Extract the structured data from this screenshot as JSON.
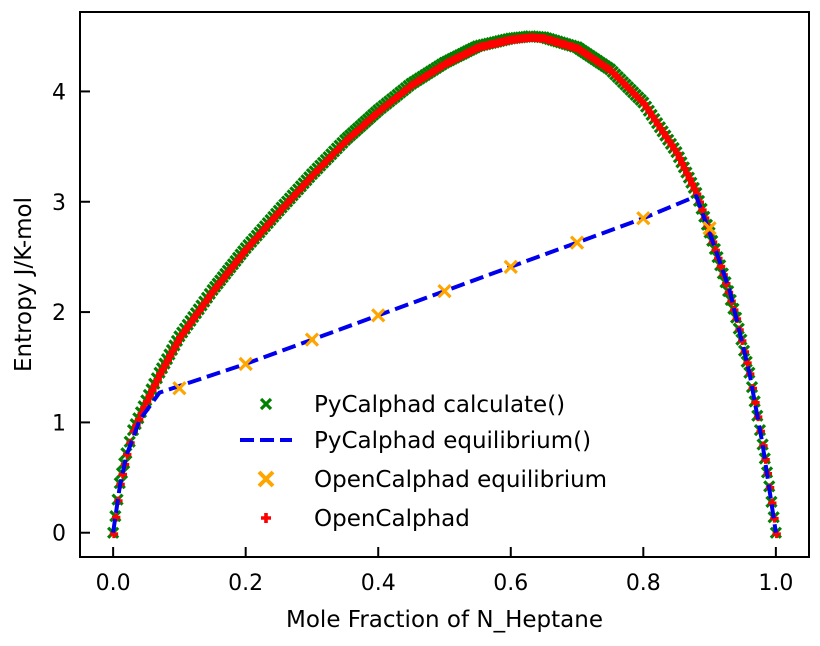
{
  "chart_data": {
    "type": "scatter",
    "title": "",
    "xlabel": "Mole Fraction of N_Heptane",
    "ylabel": "Entropy J/K-mol",
    "xlim": [
      -0.05,
      1.05
    ],
    "ylim": [
      -0.22,
      4.72
    ],
    "grid": false,
    "legend_position": "lower-center",
    "x_ticks": [
      0.0,
      0.2,
      0.4,
      0.6,
      0.8,
      1.0
    ],
    "x_tick_labels": [
      "0.0",
      "0.2",
      "0.4",
      "0.6",
      "0.8",
      "1.0"
    ],
    "y_ticks": [
      0,
      1,
      2,
      3,
      4
    ],
    "y_tick_labels": [
      "0",
      "1",
      "2",
      "3",
      "4"
    ],
    "series": [
      {
        "name": "PyCalphad calculate()",
        "kind": "curve-markers",
        "marker": "x-filled",
        "color": "#008000",
        "x": [
          0.0,
          0.01,
          0.02,
          0.03,
          0.05,
          0.07,
          0.1,
          0.15,
          0.2,
          0.25,
          0.3,
          0.35,
          0.4,
          0.45,
          0.5,
          0.55,
          0.6,
          0.63,
          0.65,
          0.7,
          0.75,
          0.8,
          0.85,
          0.88,
          0.9,
          0.92,
          0.94,
          0.96,
          0.98,
          0.99,
          1.0
        ],
        "y": [
          0.0,
          0.45,
          0.72,
          0.93,
          1.2,
          1.45,
          1.78,
          2.2,
          2.58,
          2.92,
          3.25,
          3.56,
          3.83,
          4.07,
          4.26,
          4.41,
          4.48,
          4.5,
          4.49,
          4.4,
          4.2,
          3.9,
          3.45,
          3.08,
          2.72,
          2.35,
          1.95,
          1.45,
          0.8,
          0.42,
          0.0
        ]
      },
      {
        "name": "PyCalphad equilibrium()",
        "kind": "dashed-line",
        "color": "#0000ee",
        "x": [
          0.0,
          0.01,
          0.02,
          0.04,
          0.07,
          0.2,
          0.3,
          0.4,
          0.5,
          0.6,
          0.7,
          0.8,
          0.88,
          0.9,
          0.93,
          0.96,
          0.98,
          1.0
        ],
        "y": [
          0.0,
          0.42,
          0.7,
          1.02,
          1.27,
          1.53,
          1.75,
          1.97,
          2.19,
          2.41,
          2.63,
          2.85,
          3.05,
          2.72,
          2.2,
          1.45,
          0.8,
          0.0
        ]
      },
      {
        "name": "OpenCalphad equilibrium",
        "kind": "markers",
        "marker": "x-thick",
        "color": "#ffa500",
        "x": [
          0.1,
          0.2,
          0.3,
          0.4,
          0.5,
          0.6,
          0.7,
          0.8,
          0.9
        ],
        "y": [
          1.31,
          1.53,
          1.75,
          1.97,
          2.19,
          2.41,
          2.63,
          2.85,
          2.76
        ]
      },
      {
        "name": "OpenCalphad",
        "kind": "curve-markers",
        "marker": "plus-filled",
        "color": "#ff0000",
        "x": [
          0.0,
          0.01,
          0.02,
          0.03,
          0.05,
          0.07,
          0.1,
          0.15,
          0.2,
          0.25,
          0.3,
          0.35,
          0.4,
          0.45,
          0.5,
          0.55,
          0.6,
          0.63,
          0.65,
          0.7,
          0.75,
          0.8,
          0.85,
          0.88,
          0.9,
          0.92,
          0.94,
          0.96,
          0.98,
          0.99,
          1.0
        ],
        "y": [
          0.0,
          0.45,
          0.72,
          0.93,
          1.2,
          1.45,
          1.78,
          2.2,
          2.58,
          2.92,
          3.25,
          3.56,
          3.83,
          4.07,
          4.26,
          4.41,
          4.48,
          4.5,
          4.49,
          4.4,
          4.2,
          3.9,
          3.45,
          3.08,
          2.72,
          2.35,
          1.95,
          1.45,
          0.8,
          0.42,
          0.0
        ]
      }
    ]
  }
}
